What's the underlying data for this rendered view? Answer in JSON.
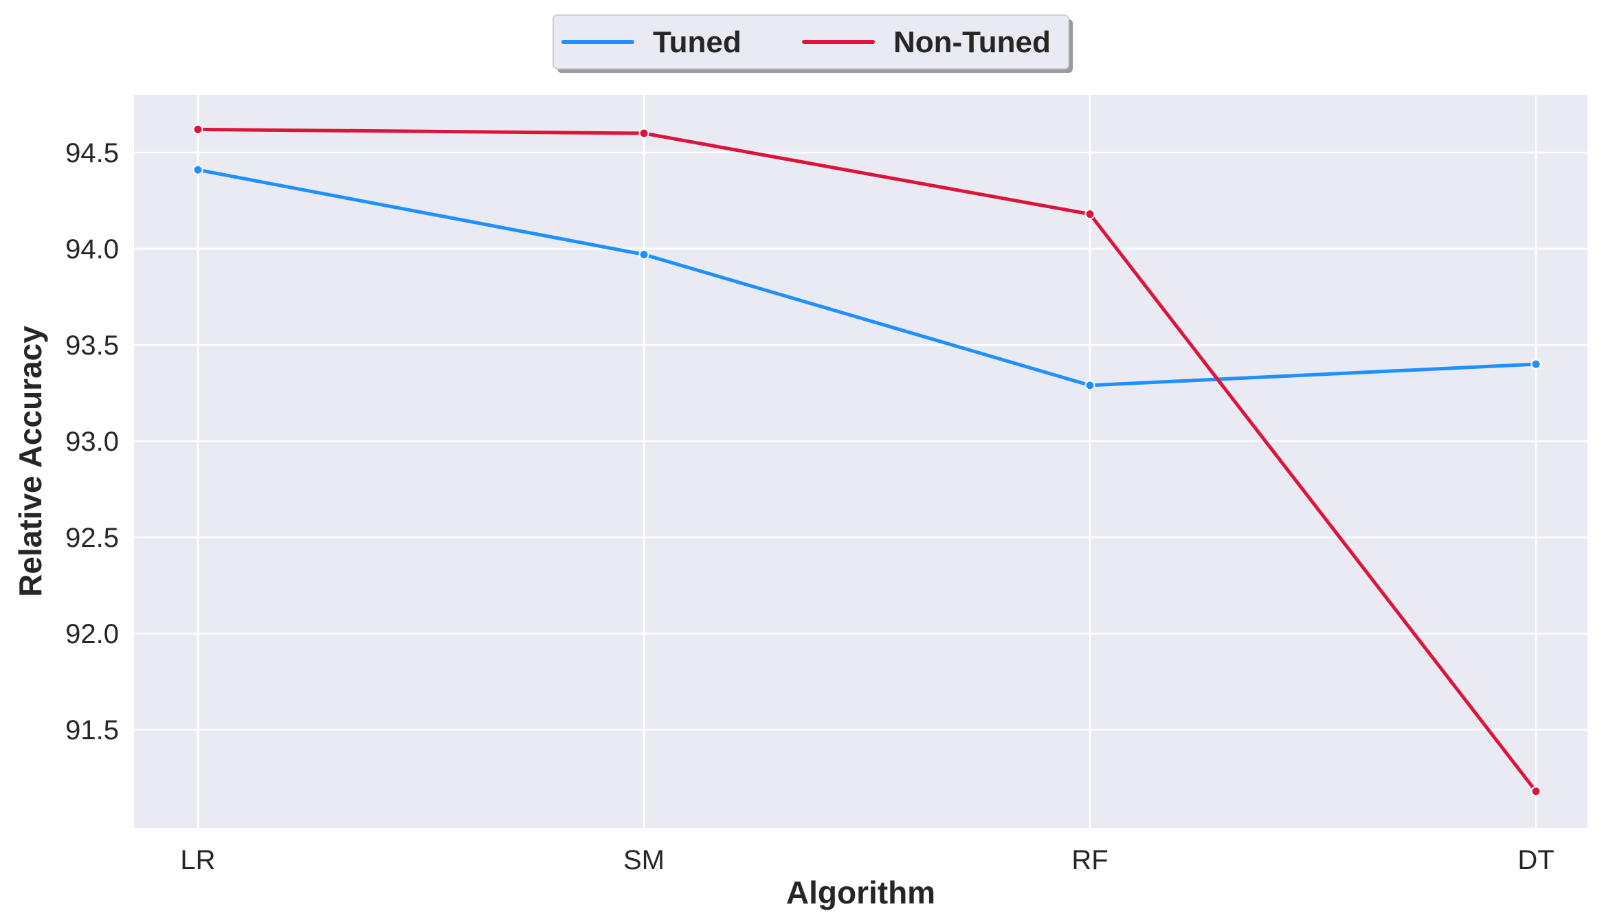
{
  "chart_data": {
    "type": "line",
    "categories": [
      "LR",
      "SM",
      "RF",
      "DT"
    ],
    "series": [
      {
        "name": "Tuned",
        "values": [
          94.41,
          93.97,
          93.29,
          93.4
        ],
        "color": "#1e90ff"
      },
      {
        "name": "Non-Tuned",
        "values": [
          94.62,
          94.6,
          94.18,
          91.18
        ],
        "color": "#dc143c"
      }
    ],
    "title": "",
    "xlabel": "Algorithm",
    "ylabel": "Relative Accuracy",
    "ylim": [
      90.99,
      94.8
    ],
    "yticks": [
      91.5,
      92.0,
      92.5,
      93.0,
      93.5,
      94.0,
      94.5
    ],
    "ytick_labels": [
      "91.5",
      "92.0",
      "92.5",
      "93.0",
      "93.5",
      "94.0",
      "94.5"
    ],
    "grid": true,
    "legend_position": "top-center",
    "background_color": "#eaeaf2",
    "grid_color": "#ffffff"
  }
}
